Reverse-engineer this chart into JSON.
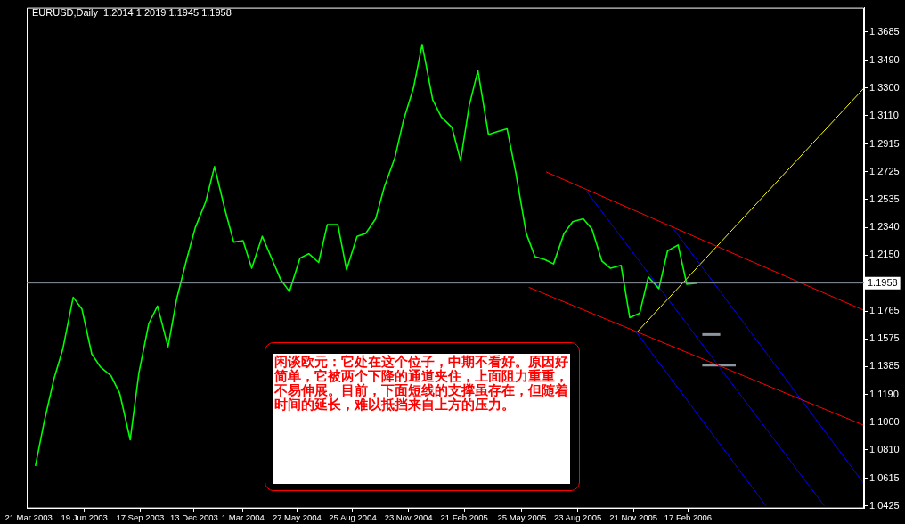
{
  "chart_data": {
    "type": "line",
    "title": "EURUSD,Daily  1.2014 1.2019 1.1945 1.1958",
    "marker": "none",
    "legend": false,
    "grid": false,
    "xlim": [
      "2003-03-18",
      "2006-11-28"
    ],
    "xticks": [
      {
        "value": "2003-03-21",
        "label": "21 Mar 2003"
      },
      {
        "value": "2003-06-19",
        "label": "19 Jun 2003"
      },
      {
        "value": "2003-09-17",
        "label": "17 Sep 2003"
      },
      {
        "value": "2003-12-13",
        "label": "13 Dec 2003"
      },
      {
        "value": "2004-03-01",
        "label": "1 Mar 2004"
      },
      {
        "value": "2004-05-27",
        "label": "27 May 2004"
      },
      {
        "value": "2004-08-25",
        "label": "25 Aug 2004"
      },
      {
        "value": "2004-11-23",
        "label": "23 Nov 2004"
      },
      {
        "value": "2005-02-21",
        "label": "21 Feb 2005"
      },
      {
        "value": "2005-05-25",
        "label": "25 May 2005"
      },
      {
        "value": "2005-08-23",
        "label": "23 Aug 2005"
      },
      {
        "value": "2005-11-21",
        "label": "21 Nov 2005"
      },
      {
        "value": "2006-02-17",
        "label": "17 Feb 2006"
      }
    ],
    "ylim": [
      1.0407,
      1.3853
    ],
    "yticks": [
      1.3685,
      {
        "value": 1.349,
        "label": "1.3490"
      },
      {
        "value": 1.33,
        "label": "1.3300"
      },
      {
        "value": 1.311,
        "label": "1.3110"
      },
      1.2915,
      1.2725,
      1.2535,
      {
        "value": 1.234,
        "label": "1.2340"
      },
      {
        "value": 1.215,
        "label": "1.2150"
      },
      1.1765,
      1.1575,
      1.1385,
      {
        "value": 1.119,
        "label": "1.1190"
      },
      {
        "value": 1.1,
        "label": "1.1000"
      },
      {
        "value": 1.081,
        "label": "1.0810"
      },
      1.0615,
      1.0425
    ],
    "ref_lines": [
      {
        "axis": "y",
        "value": 1.1958,
        "label": "1.1958",
        "color": "#8c96a0"
      }
    ],
    "annotations": [
      "闲谈欧元：它处在这个位子，中期不看好。原因好简单，它被两个下降的通道夹住，上面阻力重重，不易伸展。目前，下面短线的支撑虽存在，但随着时间的延长，难以抵挡来自上方的压力。"
    ],
    "series": [
      {
        "color": "#00ff00",
        "x": [
          "2003-04-01",
          "2003-04-15",
          "2003-05-01",
          "2003-05-15",
          "2003-06-01",
          "2003-06-15",
          "2003-07-01",
          "2003-07-15",
          "2003-08-01",
          "2003-08-15",
          "2003-09-01",
          "2003-09-15",
          "2003-10-01",
          "2003-10-15",
          "2003-11-01",
          "2003-11-15",
          "2003-12-01",
          "2003-12-15",
          "2004-01-01",
          "2004-01-15",
          "2004-02-01",
          "2004-02-15",
          "2004-03-01",
          "2004-03-15",
          "2004-04-01",
          "2004-04-15",
          "2004-05-01",
          "2004-05-15",
          "2004-06-01",
          "2004-06-15",
          "2004-07-01",
          "2004-07-15",
          "2004-08-01",
          "2004-08-15",
          "2004-09-01",
          "2004-09-15",
          "2004-10-01",
          "2004-10-15",
          "2004-11-01",
          "2004-11-15",
          "2004-12-01",
          "2004-12-15",
          "2005-01-01",
          "2005-01-15",
          "2005-02-01",
          "2005-02-15",
          "2005-03-01",
          "2005-03-15",
          "2005-04-01",
          "2005-04-15",
          "2005-05-01",
          "2005-05-15",
          "2005-06-01",
          "2005-06-15",
          "2005-07-01",
          "2005-07-15",
          "2005-08-01",
          "2005-08-15",
          "2005-09-01",
          "2005-09-15",
          "2005-10-01",
          "2005-10-15",
          "2005-11-01",
          "2005-11-15",
          "2005-12-01",
          "2005-12-15",
          "2006-01-01",
          "2006-01-15",
          "2006-02-01",
          "2006-02-15",
          "2006-03-04"
        ],
        "values": [
          1.07,
          1.1,
          1.13,
          1.15,
          1.186,
          1.178,
          1.147,
          1.138,
          1.132,
          1.12,
          1.088,
          1.134,
          1.168,
          1.18,
          1.152,
          1.185,
          1.212,
          1.234,
          1.252,
          1.276,
          1.246,
          1.224,
          1.225,
          1.206,
          1.228,
          1.214,
          1.198,
          1.19,
          1.213,
          1.216,
          1.21,
          1.236,
          1.236,
          1.205,
          1.228,
          1.23,
          1.24,
          1.262,
          1.282,
          1.308,
          1.33,
          1.36,
          1.322,
          1.31,
          1.303,
          1.28,
          1.318,
          1.342,
          1.298,
          1.3,
          1.302,
          1.272,
          1.23,
          1.214,
          1.212,
          1.209,
          1.23,
          1.238,
          1.24,
          1.233,
          1.211,
          1.206,
          1.208,
          1.172,
          1.175,
          1.2,
          1.192,
          1.218,
          1.222,
          1.195,
          1.1958
        ]
      },
      {
        "type": "line",
        "color": "#ff0000",
        "x": [
          "2005-07-03",
          "2006-11-28"
        ],
        "values": [
          1.2723,
          1.177
        ]
      },
      {
        "type": "line",
        "color": "#ff0000",
        "x": [
          "2005-06-05",
          "2006-11-28"
        ],
        "values": [
          1.1929,
          1.0979
        ]
      },
      {
        "type": "line",
        "color": "#0000ff",
        "x": [
          "2005-09-06",
          "2006-09-25"
        ],
        "values": [
          1.2591,
          1.0425
        ]
      },
      {
        "type": "line",
        "color": "#0000ff",
        "x": [
          "2005-11-26",
          "2006-06-23"
        ],
        "values": [
          1.1617,
          1.0425
        ]
      },
      {
        "type": "line",
        "color": "#0000ff",
        "x": [
          "2006-01-25",
          "2006-11-28"
        ],
        "values": [
          1.2328,
          1.0577
        ]
      },
      {
        "type": "line",
        "color": "#ffff00",
        "x": [
          "2005-11-26",
          "2006-11-28"
        ],
        "values": [
          1.1617,
          1.33
        ]
      },
      {
        "type": "line",
        "color": "#8c96a0",
        "x": [
          "2006-03-12",
          "2006-04-10"
        ],
        "values": [
          1.1604,
          1.1604
        ]
      },
      {
        "type": "line",
        "color": "#8c96a0",
        "x": [
          "2006-03-12",
          "2006-05-05"
        ],
        "values": [
          1.1394,
          1.1394
        ]
      }
    ]
  }
}
